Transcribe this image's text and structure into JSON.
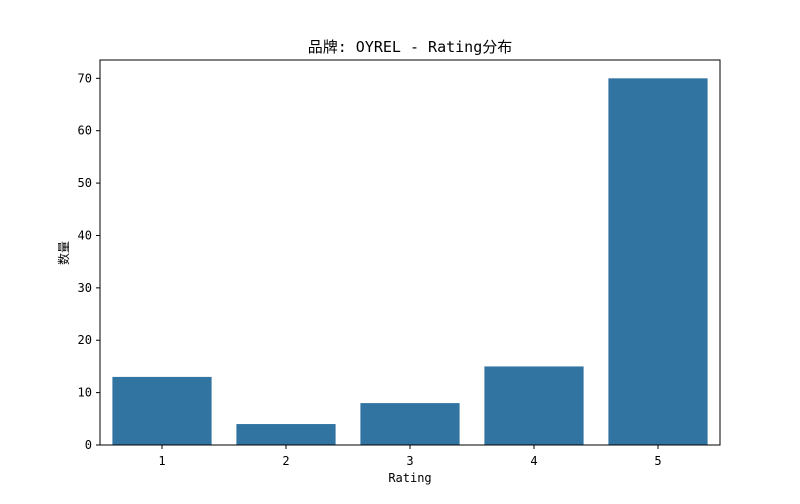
{
  "chart_data": {
    "type": "bar",
    "title": "品牌: OYREL - Rating分布",
    "xlabel": "Rating",
    "ylabel": "数量",
    "categories": [
      "1",
      "2",
      "3",
      "4",
      "5"
    ],
    "values": [
      13,
      4,
      8,
      15,
      70
    ],
    "ylim": [
      0,
      73.5
    ],
    "yticks": [
      0,
      10,
      20,
      30,
      40,
      50,
      60,
      70
    ],
    "grid": false,
    "colors": {
      "bar": "#3274a1",
      "axis": "#000000",
      "background": "#ffffff"
    }
  }
}
